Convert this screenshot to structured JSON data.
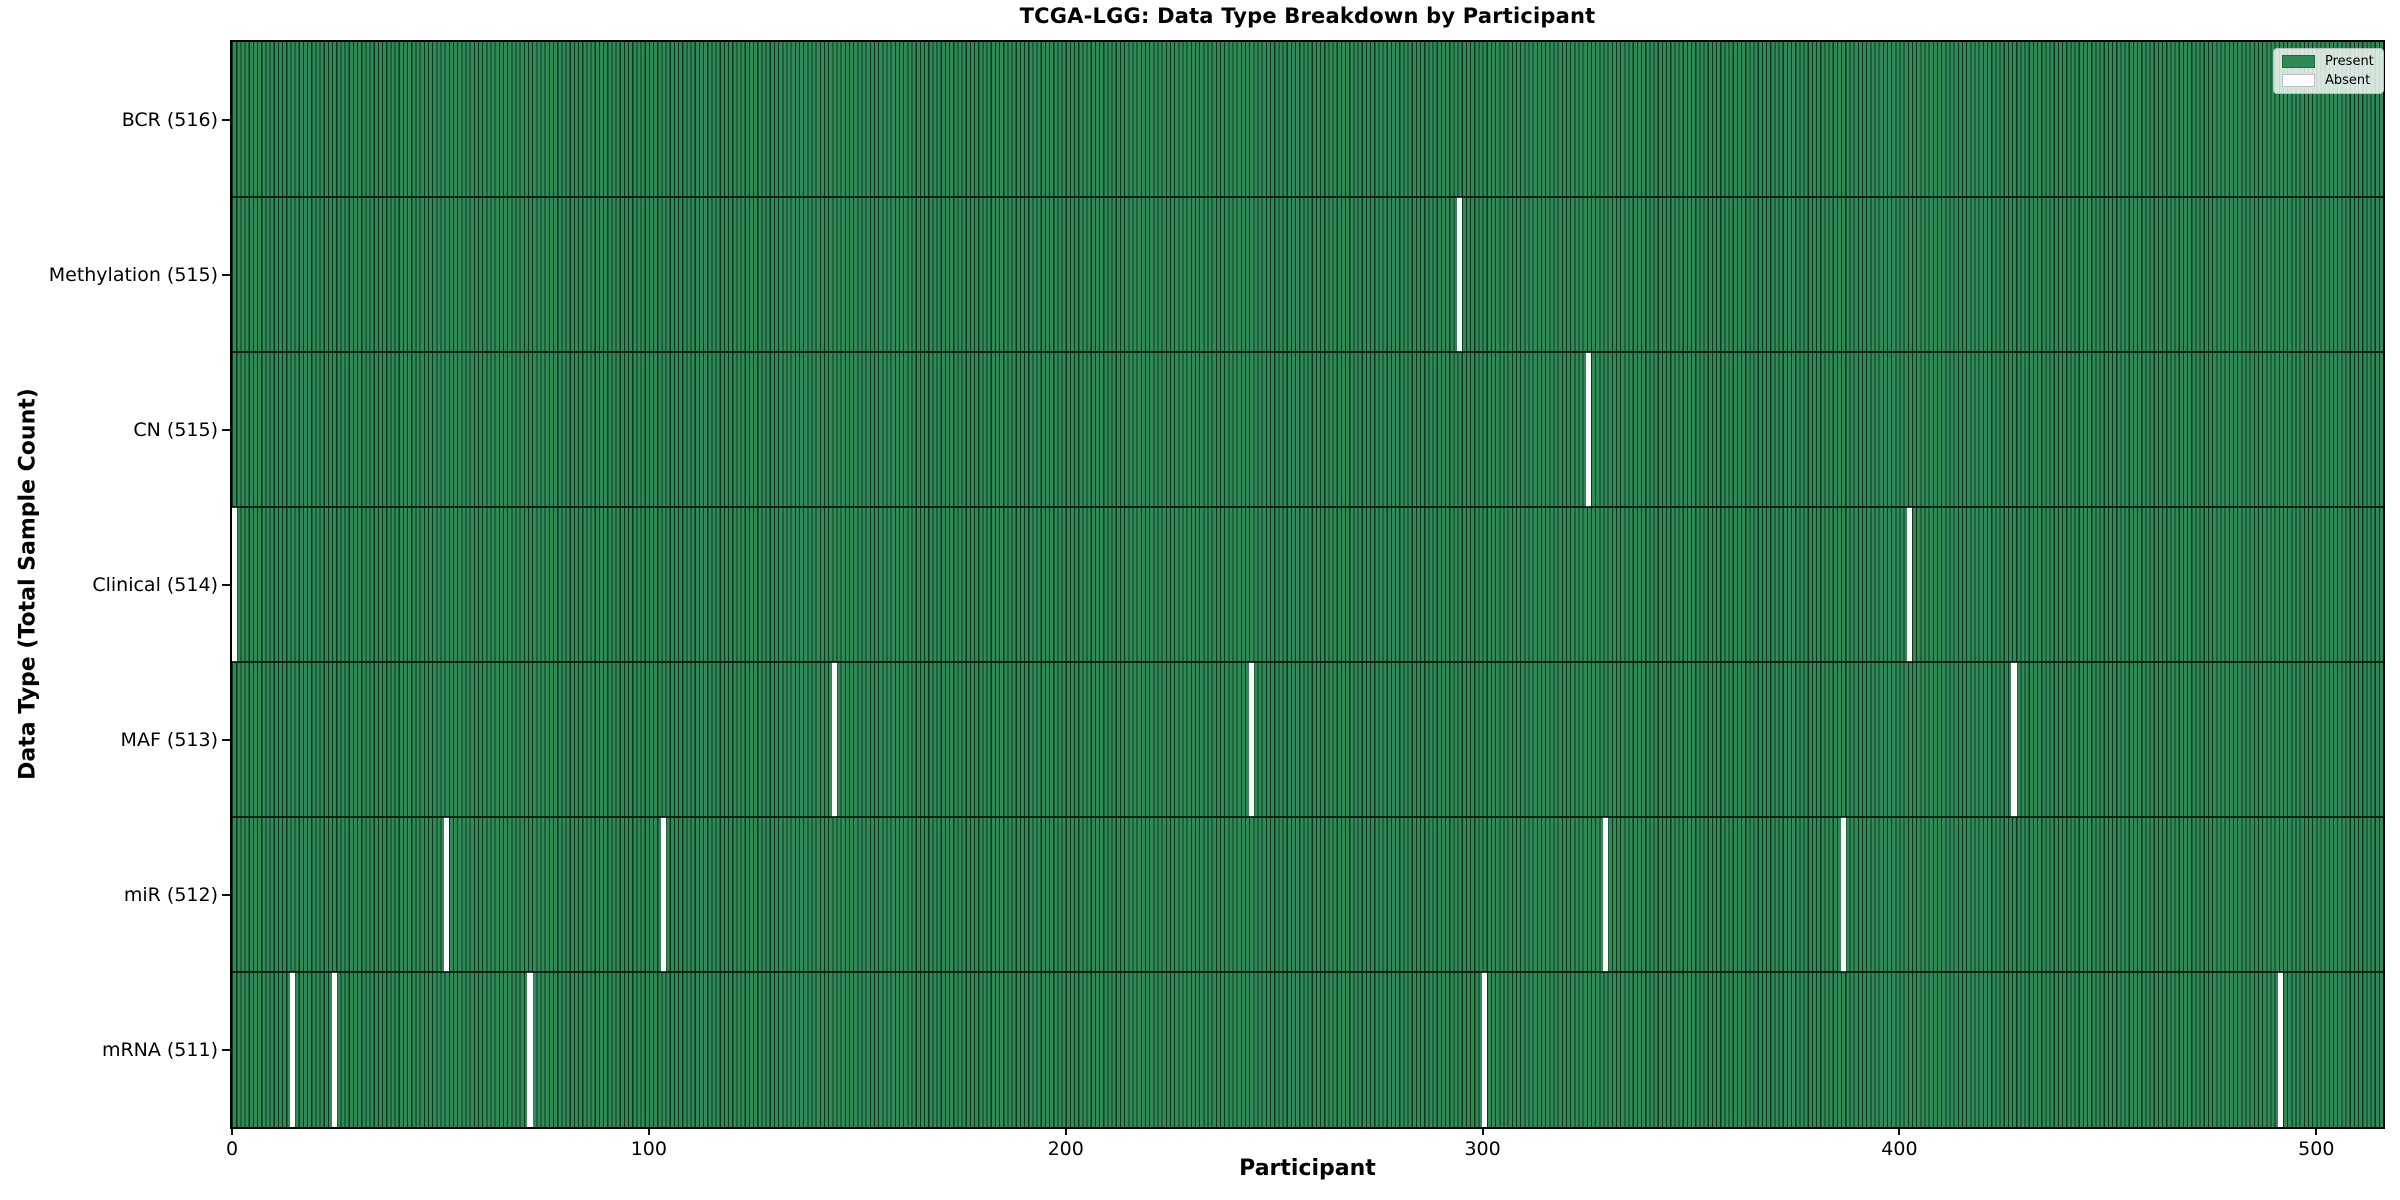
{
  "title": "TCGA-LGG: Data Type Breakdown by Participant",
  "xlabel": "Participant",
  "ylabel": "Data Type (Total Sample Count)",
  "legend": {
    "position": "upper-right",
    "present_label": "Present",
    "absent_label": "Absent"
  },
  "colors": {
    "present": "#2e8b57",
    "absent": "#ffffff",
    "bar_edge": "#11341f",
    "row_divider": "#0a1d12",
    "axis": "#000000",
    "legend_border": "#bdbdbd"
  },
  "x_ticks": [
    "0",
    "100",
    "200",
    "300",
    "400",
    "500"
  ],
  "chart_data": {
    "type": "heatmap",
    "title": "TCGA-LGG: Data Type Breakdown by Participant",
    "xlabel": "Participant",
    "ylabel": "Data Type (Total Sample Count)",
    "x_range": [
      0,
      516
    ],
    "x_tick_values": [
      0,
      100,
      200,
      300,
      400,
      500
    ],
    "total_participants": 516,
    "grid": false,
    "legend_entries": [
      "Present",
      "Absent"
    ],
    "legend_position": "upper right",
    "rows": [
      {
        "label": "BCR (516)",
        "data_type": "BCR",
        "present_count": 516,
        "absent_participants": []
      },
      {
        "label": "Methylation (515)",
        "data_type": "Methylation",
        "present_count": 515,
        "absent_participants": [
          294
        ]
      },
      {
        "label": "CN (515)",
        "data_type": "CN",
        "present_count": 515,
        "absent_participants": [
          325
        ]
      },
      {
        "label": "Clinical (514)",
        "data_type": "Clinical",
        "present_count": 514,
        "absent_participants": [
          0,
          402
        ]
      },
      {
        "label": "MAF (513)",
        "data_type": "MAF",
        "present_count": 513,
        "absent_participants": [
          144,
          244,
          427
        ]
      },
      {
        "label": "miR (512)",
        "data_type": "miR",
        "present_count": 512,
        "absent_participants": [
          51,
          103,
          329,
          386
        ]
      },
      {
        "label": "mRNA (511)",
        "data_type": "mRNA",
        "present_count": 511,
        "absent_participants": [
          14,
          24,
          71,
          300,
          491
        ]
      }
    ]
  }
}
